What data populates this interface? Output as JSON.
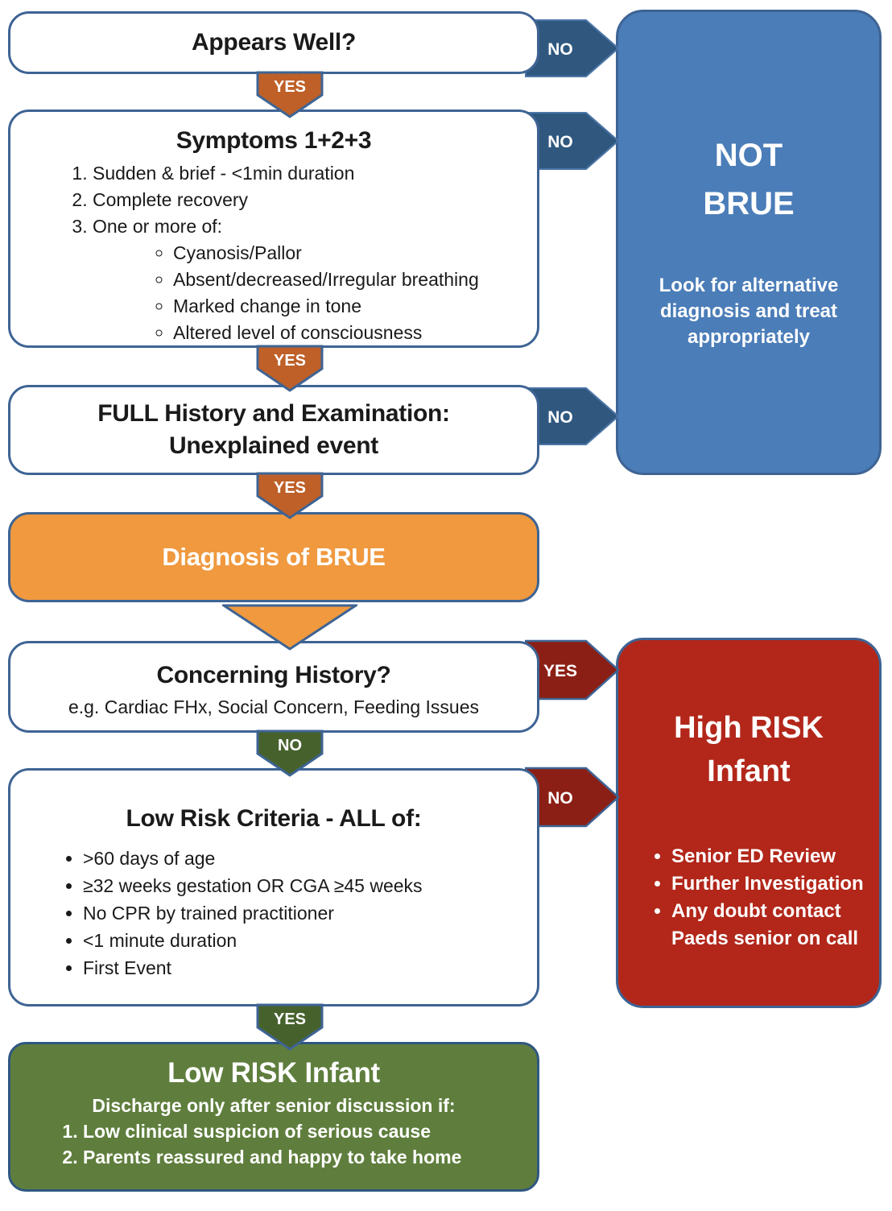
{
  "title": "BRUE decision flowchart",
  "labels": {
    "yes": "YES",
    "no": "NO"
  },
  "appears_well": {
    "title": "Appears Well?"
  },
  "symptoms": {
    "title": "Symptoms 1+2+3",
    "items": [
      "Sudden & brief - <1min duration",
      "Complete recovery",
      "One or more of:"
    ],
    "sub_items": [
      "Cyanosis/Pallor",
      "Absent/decreased/Irregular breathing",
      "Marked change in tone",
      "Altered level of consciousness"
    ]
  },
  "full_history": {
    "line1": "FULL History and Examination:",
    "line2": "Unexplained event"
  },
  "diagnosis": {
    "title": "Diagnosis of BRUE"
  },
  "concerning": {
    "title": "Concerning History?",
    "subtitle": "e.g. Cardiac FHx, Social Concern, Feeding Issues"
  },
  "low_risk_criteria": {
    "title": "Low Risk Criteria - ALL of:",
    "items": [
      ">60 days of age",
      "≥32 weeks gestation OR CGA ≥45 weeks",
      "No CPR by trained practitioner",
      "<1 minute duration",
      "First Event"
    ]
  },
  "low_risk_infant": {
    "title": "Low RISK Infant",
    "subtitle": "Discharge only after senior discussion if:",
    "items": [
      "Low clinical suspicion of serious cause",
      "Parents reassured and happy to take home"
    ]
  },
  "not_brue": {
    "title_line1": "NOT",
    "title_line2": "BRUE",
    "body": "Look for alternative diagnosis and treat appropriately"
  },
  "high_risk": {
    "title_line1": "High RISK",
    "title_line2": "Infant",
    "items": [
      "Senior ED Review",
      "Further Investigation",
      "Any doubt contact Paeds senior on call"
    ]
  },
  "colors": {
    "box_border_blue": "#3E6494",
    "chevron_dark_blue": "#30587F",
    "not_brue_blue": "#4B7DB8",
    "yes_orange": "#BE6028",
    "diagnosis_orange": "#F0993F",
    "green_arrow": "#47612D",
    "low_risk_green": "#5F7E3D",
    "high_risk_red": "#B2271A",
    "red_chevron": "#8C1F15"
  }
}
